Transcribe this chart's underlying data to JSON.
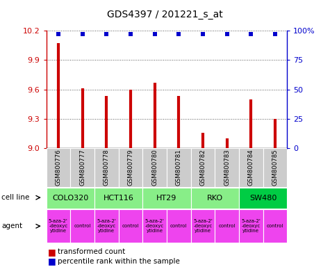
{
  "title": "GDS4397 / 201221_s_at",
  "samples": [
    "GSM800776",
    "GSM800777",
    "GSM800778",
    "GSM800779",
    "GSM800780",
    "GSM800781",
    "GSM800782",
    "GSM800783",
    "GSM800784",
    "GSM800785"
  ],
  "bar_values": [
    10.07,
    9.61,
    9.53,
    9.6,
    9.67,
    9.53,
    9.16,
    9.1,
    9.5,
    9.3
  ],
  "dot_values": [
    100,
    100,
    100,
    100,
    100,
    100,
    100,
    100,
    100,
    100
  ],
  "ylim": [
    9.0,
    10.2
  ],
  "yticks": [
    9.0,
    9.3,
    9.6,
    9.9,
    10.2
  ],
  "right_yticks": [
    0,
    25,
    50,
    75,
    100
  ],
  "bar_color": "#cc0000",
  "dot_color": "#0000cc",
  "cell_lines": [
    {
      "name": "COLO320",
      "start": 0,
      "end": 2,
      "color": "#88ee88"
    },
    {
      "name": "HCT116",
      "start": 2,
      "end": 4,
      "color": "#88ee88"
    },
    {
      "name": "HT29",
      "start": 4,
      "end": 6,
      "color": "#88ee88"
    },
    {
      "name": "RKO",
      "start": 6,
      "end": 8,
      "color": "#88ee88"
    },
    {
      "name": "SW480",
      "start": 8,
      "end": 10,
      "color": "#00cc44"
    }
  ],
  "agents": [
    {
      "name": "5-aza-2'\n-deoxyc\nytidine",
      "start": 0,
      "end": 1
    },
    {
      "name": "control",
      "start": 1,
      "end": 2
    },
    {
      "name": "5-aza-2'\n-deoxyc\nytidine",
      "start": 2,
      "end": 3
    },
    {
      "name": "control",
      "start": 3,
      "end": 4
    },
    {
      "name": "5-aza-2'\n-deoxyc\nytidine",
      "start": 4,
      "end": 5
    },
    {
      "name": "control",
      "start": 5,
      "end": 6
    },
    {
      "name": "5-aza-2'\n-deoxyc\nytidine",
      "start": 6,
      "end": 7
    },
    {
      "name": "control",
      "start": 7,
      "end": 8
    },
    {
      "name": "5-aza-2'\n-deoxyc\nytidine",
      "start": 8,
      "end": 9
    },
    {
      "name": "control",
      "start": 9,
      "end": 10
    }
  ],
  "legend_items": [
    {
      "label": "transformed count",
      "color": "#cc0000"
    },
    {
      "label": "percentile rank within the sample",
      "color": "#0000cc"
    }
  ],
  "bg_color": "#ffffff",
  "grid_color": "#555555",
  "sample_bg_color": "#cccccc",
  "cell_line_light": "#88ee88",
  "cell_line_dark": "#00cc44",
  "agent_row_color": "#ee44ee"
}
